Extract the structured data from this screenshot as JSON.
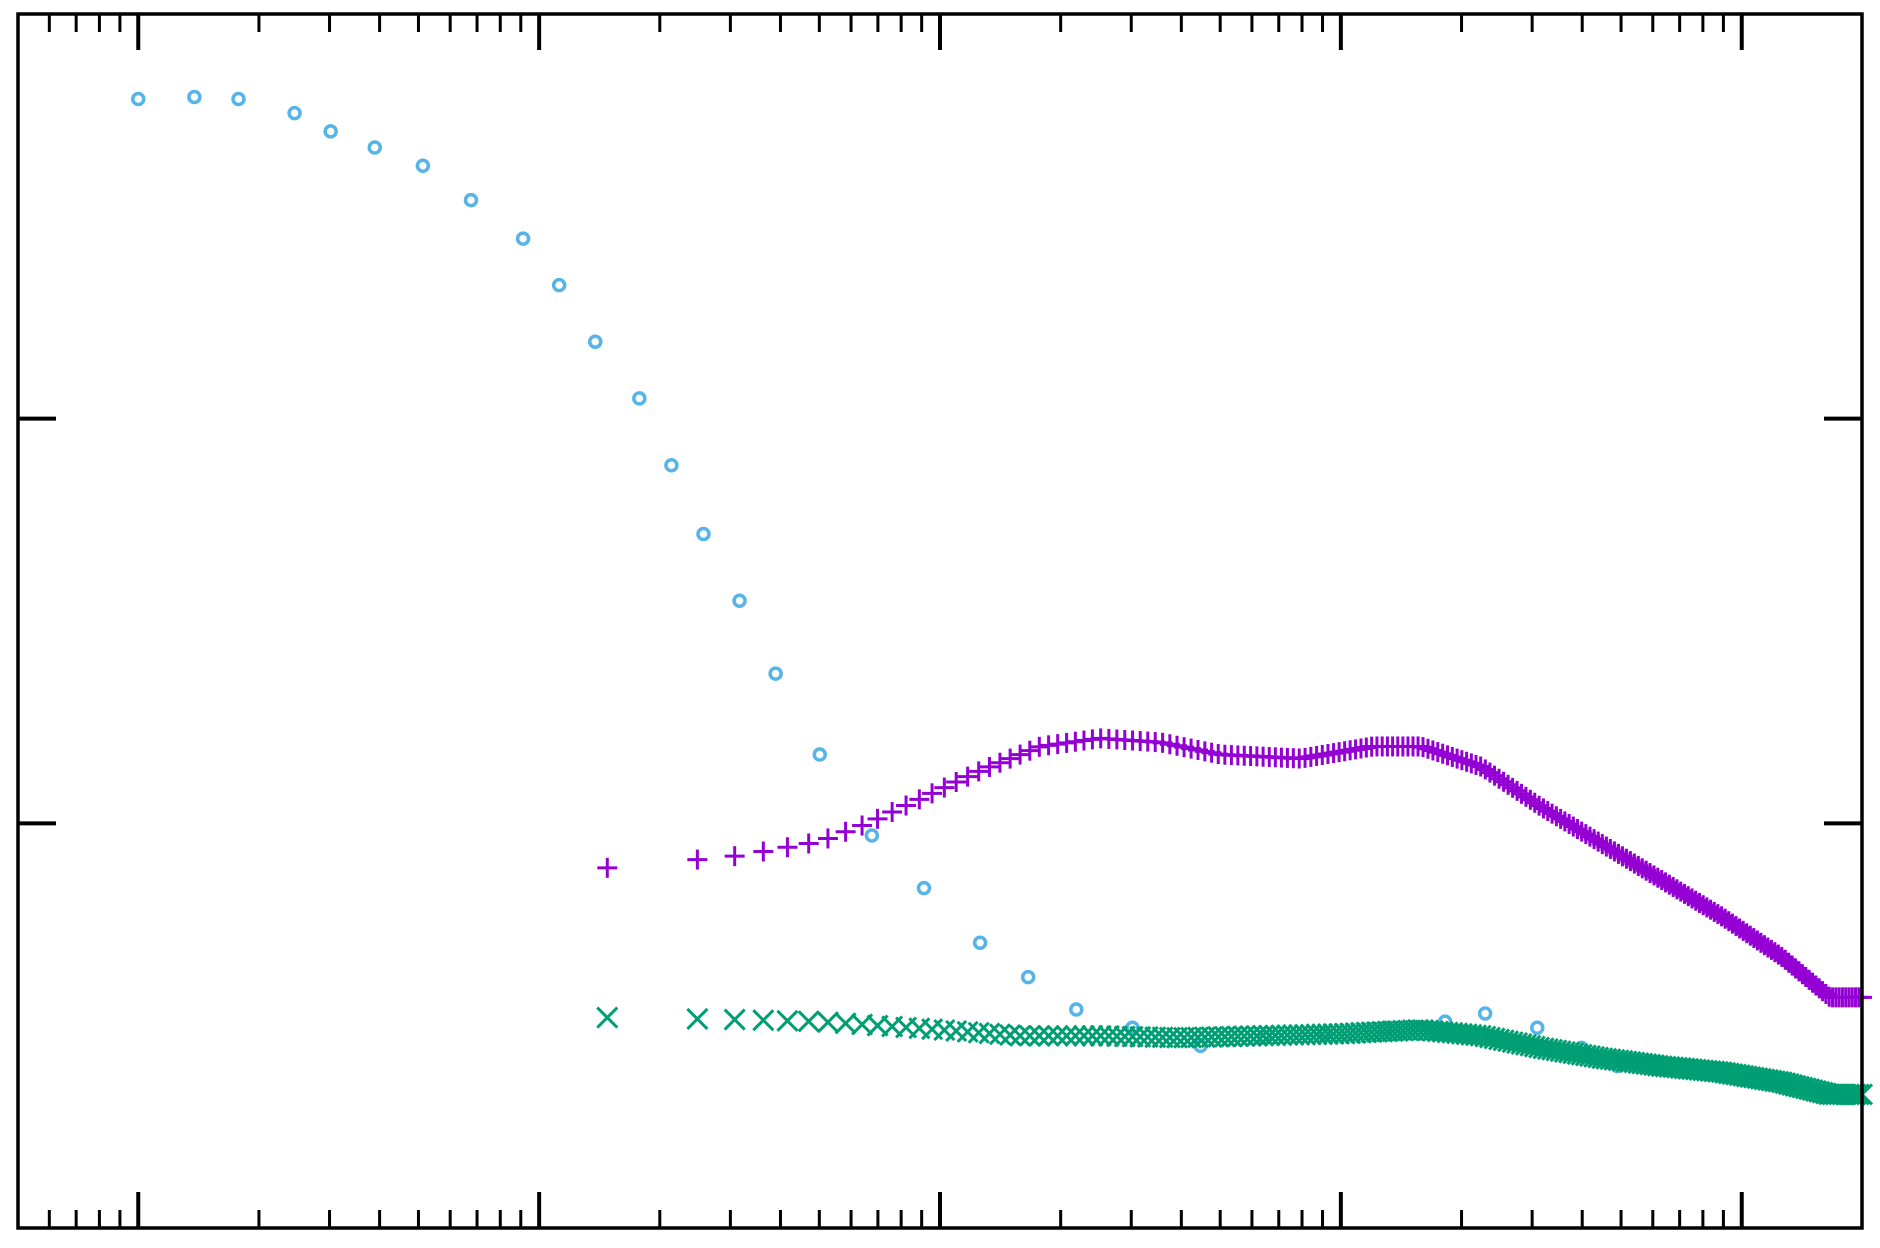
{
  "chart_data": {
    "type": "scatter",
    "title": "",
    "xlabel": "",
    "ylabel": "",
    "x_scale": "log",
    "xlim_decades": [
      -0.3,
      4.3
    ],
    "ylim": [
      -1.0,
      2.0
    ],
    "grid": false,
    "legend": "none",
    "colors": {
      "circles": "#56b4e9",
      "plus": "#9400d3",
      "cross": "#009e73",
      "axis": "#000000",
      "background": "#ffffff"
    },
    "series": [
      {
        "marker": "circle",
        "points": [
          [
            0.0,
            1.79
          ],
          [
            0.14,
            1.795
          ],
          [
            0.25,
            1.79
          ],
          [
            0.39,
            1.755
          ],
          [
            0.48,
            1.71
          ],
          [
            0.59,
            1.67
          ],
          [
            0.71,
            1.625
          ],
          [
            0.83,
            1.54
          ],
          [
            0.96,
            1.445
          ],
          [
            1.05,
            1.33
          ],
          [
            1.14,
            1.19
          ],
          [
            1.25,
            1.05
          ],
          [
            1.33,
            0.885
          ],
          [
            1.41,
            0.715
          ],
          [
            1.5,
            0.55
          ],
          [
            1.59,
            0.37
          ],
          [
            1.7,
            0.17
          ],
          [
            1.83,
            -0.03
          ],
          [
            1.96,
            -0.16
          ],
          [
            2.1,
            -0.295
          ],
          [
            2.22,
            -0.38
          ],
          [
            2.34,
            -0.46
          ],
          [
            2.48,
            -0.505
          ],
          [
            2.65,
            -0.55
          ],
          [
            2.81,
            -0.53
          ],
          [
            2.96,
            -0.52
          ],
          [
            3.11,
            -0.505
          ],
          [
            3.26,
            -0.49
          ],
          [
            3.36,
            -0.47
          ],
          [
            3.49,
            -0.505
          ],
          [
            3.6,
            -0.555
          ],
          [
            3.67,
            -0.59
          ],
          [
            3.69,
            -0.6
          ],
          [
            3.82,
            -0.6
          ]
        ]
      },
      {
        "marker": "plus",
        "x_min": 1.17,
        "x_max": 4.3,
        "count": 195,
        "anchors": [
          [
            1.17,
            -0.11
          ],
          [
            1.5,
            -0.08
          ],
          [
            1.7,
            -0.045
          ],
          [
            1.82,
            0.0
          ],
          [
            1.95,
            0.06
          ],
          [
            2.1,
            0.13
          ],
          [
            2.25,
            0.19
          ],
          [
            2.4,
            0.21
          ],
          [
            2.55,
            0.2
          ],
          [
            2.7,
            0.17
          ],
          [
            2.9,
            0.16
          ],
          [
            3.08,
            0.19
          ],
          [
            3.2,
            0.19
          ],
          [
            3.35,
            0.14
          ],
          [
            3.5,
            0.04
          ],
          [
            3.65,
            -0.05
          ],
          [
            3.8,
            -0.14
          ],
          [
            3.95,
            -0.23
          ],
          [
            4.1,
            -0.33
          ],
          [
            4.22,
            -0.43
          ],
          [
            4.3,
            -0.43
          ]
        ]
      },
      {
        "marker": "cross",
        "x_min": 1.17,
        "x_max": 4.3,
        "count": 195,
        "anchors": [
          [
            1.17,
            -0.48
          ],
          [
            1.5,
            -0.485
          ],
          [
            1.7,
            -0.49
          ],
          [
            1.85,
            -0.5
          ],
          [
            2.0,
            -0.51
          ],
          [
            2.2,
            -0.525
          ],
          [
            2.4,
            -0.525
          ],
          [
            2.6,
            -0.53
          ],
          [
            2.8,
            -0.525
          ],
          [
            3.0,
            -0.52
          ],
          [
            3.2,
            -0.51
          ],
          [
            3.35,
            -0.525
          ],
          [
            3.5,
            -0.555
          ],
          [
            3.65,
            -0.58
          ],
          [
            3.8,
            -0.6
          ],
          [
            3.95,
            -0.615
          ],
          [
            4.1,
            -0.64
          ],
          [
            4.22,
            -0.67
          ],
          [
            4.3,
            -0.67
          ]
        ]
      }
    ]
  }
}
